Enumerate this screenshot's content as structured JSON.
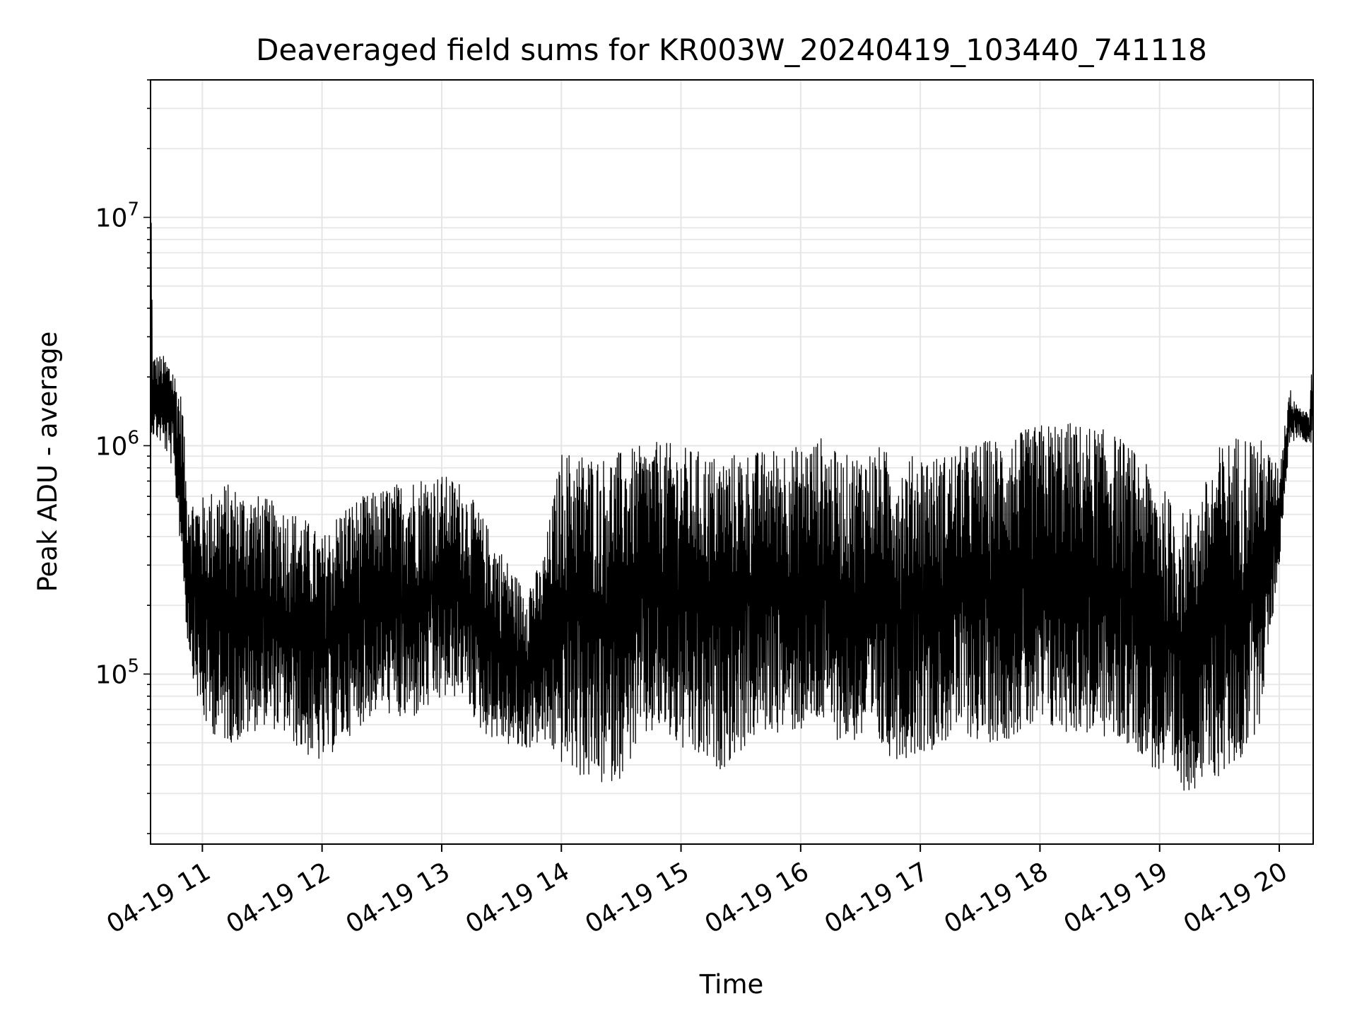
{
  "chart_data": {
    "type": "line",
    "title": "Deaveraged field sums for KR003W_20240419_103440_741118",
    "xlabel": "Time",
    "ylabel": "Peak ADU - average",
    "yscale": "log",
    "ylim": [
      18000,
      40000000
    ],
    "xlim": [
      "2024-04-19 10:34",
      "2024-04-19 20:17"
    ],
    "grid": true,
    "grid_color": "#e6e6e6",
    "line_color": "#000000",
    "x_ticks": [
      {
        "value": "2024-04-19 11:00",
        "label": "04-19 11"
      },
      {
        "value": "2024-04-19 12:00",
        "label": "04-19 12"
      },
      {
        "value": "2024-04-19 13:00",
        "label": "04-19 13"
      },
      {
        "value": "2024-04-19 14:00",
        "label": "04-19 14"
      },
      {
        "value": "2024-04-19 15:00",
        "label": "04-19 15"
      },
      {
        "value": "2024-04-19 16:00",
        "label": "04-19 16"
      },
      {
        "value": "2024-04-19 17:00",
        "label": "04-19 17"
      },
      {
        "value": "2024-04-19 18:00",
        "label": "04-19 18"
      },
      {
        "value": "2024-04-19 19:00",
        "label": "04-19 19"
      },
      {
        "value": "2024-04-19 20:00",
        "label": "04-19 20"
      }
    ],
    "y_ticks": [
      {
        "value": 100000,
        "mantissa": "10",
        "exp": "5"
      },
      {
        "value": 1000000,
        "mantissa": "10",
        "exp": "6"
      },
      {
        "value": 10000000,
        "mantissa": "10",
        "exp": "7"
      }
    ],
    "series": [
      {
        "x": [
          "2024-04-19 10:34",
          "2024-04-19 10:35",
          "2024-04-19 10:40",
          "2024-04-19 10:45",
          "2024-04-19 10:50",
          "2024-04-19 10:52",
          "2024-04-19 10:55",
          "2024-04-19 11:00",
          "2024-04-19 11:10",
          "2024-04-19 11:20",
          "2024-04-19 11:30",
          "2024-04-19 11:40",
          "2024-04-19 11:50",
          "2024-04-19 12:00",
          "2024-04-19 12:10",
          "2024-04-19 12:20",
          "2024-04-19 12:30",
          "2024-04-19 12:40",
          "2024-04-19 12:50",
          "2024-04-19 13:00",
          "2024-04-19 13:10",
          "2024-04-19 13:20",
          "2024-04-19 13:30",
          "2024-04-19 13:40",
          "2024-04-19 13:50",
          "2024-04-19 14:00",
          "2024-04-19 14:10",
          "2024-04-19 14:20",
          "2024-04-19 14:30",
          "2024-04-19 14:40",
          "2024-04-19 14:50",
          "2024-04-19 15:00",
          "2024-04-19 15:10",
          "2024-04-19 15:20",
          "2024-04-19 15:30",
          "2024-04-19 15:40",
          "2024-04-19 15:50",
          "2024-04-19 16:00",
          "2024-04-19 16:10",
          "2024-04-19 16:20",
          "2024-04-19 16:30",
          "2024-04-19 16:40",
          "2024-04-19 16:50",
          "2024-04-19 17:00",
          "2024-04-19 17:10",
          "2024-04-19 17:20",
          "2024-04-19 17:30",
          "2024-04-19 17:40",
          "2024-04-19 17:50",
          "2024-04-19 18:00",
          "2024-04-19 18:10",
          "2024-04-19 18:20",
          "2024-04-19 18:30",
          "2024-04-19 18:40",
          "2024-04-19 18:50",
          "2024-04-19 19:00",
          "2024-04-19 19:10",
          "2024-04-19 19:20",
          "2024-04-19 19:30",
          "2024-04-19 19:40",
          "2024-04-19 19:50",
          "2024-04-19 20:00",
          "2024-04-19 20:05",
          "2024-04-19 20:10",
          "2024-04-19 20:15",
          "2024-04-19 20:17"
        ],
        "upper": [
          30000000,
          2500000,
          2500000,
          2300000,
          1600000,
          700000,
          600000,
          600000,
          700000,
          650000,
          600000,
          550000,
          500000,
          400000,
          550000,
          600000,
          650000,
          700000,
          750000,
          750000,
          700000,
          500000,
          350000,
          250000,
          300000,
          950000,
          950000,
          900000,
          950000,
          1000000,
          1050000,
          1000000,
          950000,
          900000,
          950000,
          950000,
          1000000,
          1000000,
          1100000,
          900000,
          950000,
          1000000,
          850000,
          950000,
          900000,
          1000000,
          1050000,
          1100000,
          1150000,
          1250000,
          1300000,
          1250000,
          1200000,
          1100000,
          900000,
          700000,
          500000,
          600000,
          1000000,
          1150000,
          1100000,
          800000,
          1800000,
          1500000,
          1400000,
          2800000
        ],
        "lower": [
          1200000,
          1100000,
          1000000,
          800000,
          300000,
          150000,
          100000,
          60000,
          50000,
          50000,
          60000,
          55000,
          45000,
          40000,
          50000,
          60000,
          70000,
          60000,
          65000,
          75000,
          80000,
          55000,
          50000,
          45000,
          50000,
          40000,
          35000,
          32000,
          35000,
          50000,
          55000,
          45000,
          40000,
          38000,
          45000,
          55000,
          55000,
          55000,
          60000,
          50000,
          50000,
          45000,
          42000,
          45000,
          48000,
          55000,
          50000,
          50000,
          55000,
          55000,
          55000,
          55000,
          52000,
          50000,
          45000,
          35000,
          30000,
          32000,
          35000,
          40000,
          60000,
          300000,
          1000000,
          1100000,
          1000000,
          1000000
        ]
      }
    ]
  }
}
